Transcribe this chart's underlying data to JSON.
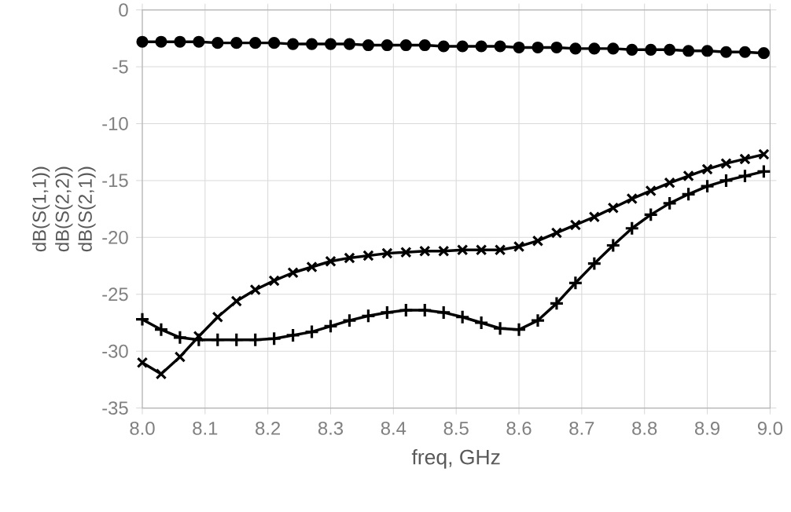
{
  "chart_data": {
    "type": "line",
    "xlabel": "freq, GHz",
    "ylabel": "dB(S(1,1)) dB(S(2,2)) dB(S(2,1))",
    "x": [
      8.0,
      8.03,
      8.06,
      8.09,
      8.12,
      8.15,
      8.18,
      8.21,
      8.24,
      8.27,
      8.3,
      8.33,
      8.36,
      8.39,
      8.42,
      8.45,
      8.48,
      8.51,
      8.54,
      8.57,
      8.6,
      8.63,
      8.66,
      8.69,
      8.72,
      8.75,
      8.78,
      8.81,
      8.84,
      8.87,
      8.9,
      8.93,
      8.96,
      8.99
    ],
    "series": [
      {
        "color": "#000000",
        "marker": "circle",
        "values": [
          -2.8,
          -2.8,
          -2.8,
          -2.8,
          -2.9,
          -2.9,
          -2.9,
          -2.9,
          -3.0,
          -3.0,
          -3.0,
          -3.0,
          -3.1,
          -3.1,
          -3.1,
          -3.1,
          -3.2,
          -3.2,
          -3.2,
          -3.2,
          -3.3,
          -3.3,
          -3.3,
          -3.4,
          -3.4,
          -3.4,
          -3.5,
          -3.5,
          -3.5,
          -3.6,
          -3.6,
          -3.7,
          -3.7,
          -3.8
        ]
      },
      {
        "color": "#000000",
        "marker": "cross",
        "values": [
          -31.0,
          -32.0,
          -30.5,
          -28.7,
          -27.0,
          -25.6,
          -24.6,
          -23.8,
          -23.1,
          -22.6,
          -22.1,
          -21.8,
          -21.6,
          -21.4,
          -21.3,
          -21.2,
          -21.2,
          -21.1,
          -21.1,
          -21.1,
          -20.8,
          -20.3,
          -19.6,
          -18.9,
          -18.2,
          -17.4,
          -16.6,
          -15.9,
          -15.2,
          -14.6,
          -14.0,
          -13.5,
          -13.1,
          -12.7
        ]
      },
      {
        "color": "#000000",
        "marker": "plus",
        "values": [
          -27.2,
          -28.1,
          -28.8,
          -29.0,
          -29.0,
          -29.0,
          -29.0,
          -28.9,
          -28.6,
          -28.3,
          -27.8,
          -27.3,
          -26.9,
          -26.6,
          -26.4,
          -26.4,
          -26.6,
          -27.0,
          -27.5,
          -28.0,
          -28.1,
          -27.3,
          -25.8,
          -24.0,
          -22.3,
          -20.7,
          -19.2,
          -18.0,
          -17.0,
          -16.2,
          -15.5,
          -15.0,
          -14.6,
          -14.2
        ]
      }
    ],
    "xlim": [
      8.0,
      9.0
    ],
    "ylim": [
      -35,
      0
    ],
    "xticks": [
      {
        "value": 8.0,
        "label": "8.0"
      },
      8.1,
      8.2,
      8.3,
      8.4,
      8.5,
      8.6,
      8.7,
      8.8,
      8.9,
      {
        "value": 9.0,
        "label": "9.0"
      }
    ],
    "yticks": [
      -35,
      -30,
      -25,
      -20,
      -15,
      -10,
      -5,
      0
    ],
    "grid": true
  }
}
